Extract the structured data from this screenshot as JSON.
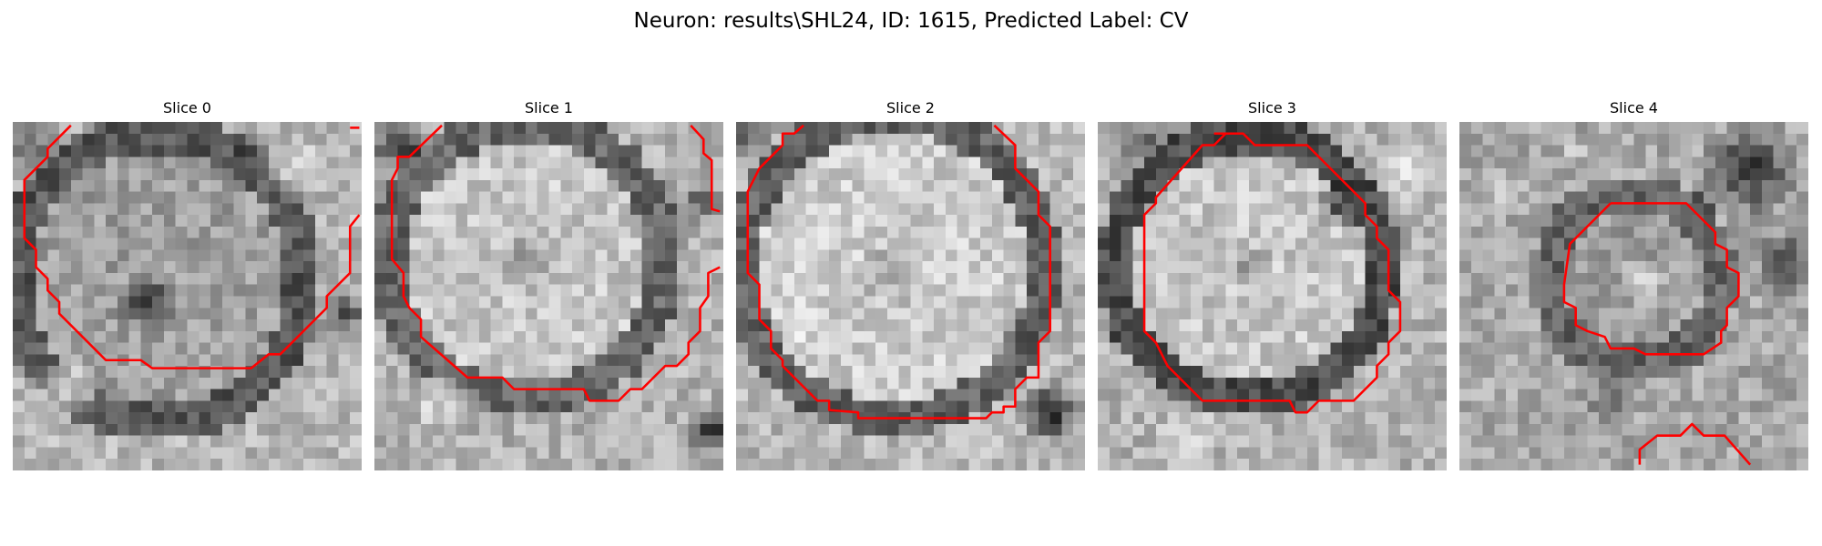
{
  "figure": {
    "title": "Neuron: results\\SHL24, ID: 1615, Predicted Label: CV"
  },
  "colors": {
    "contour": "#ff0000",
    "background": "#ffffff"
  },
  "slices": [
    {
      "title": "Slice 0",
      "grid_size": 30,
      "cell_mode": "ring",
      "ring": {
        "cx": 12.5,
        "cy": 13.5,
        "r": 12.5,
        "fill": 0.62,
        "rim": 0.34,
        "out": 0.72
      },
      "dark_spots": [
        [
          11.5,
          15.5,
          2.6,
          0.15
        ],
        [
          20.5,
          3.5,
          3.0,
          0.28
        ],
        [
          28.5,
          16.5,
          2.5,
          0.25
        ],
        [
          1.5,
          2.0,
          2.5,
          0.3
        ]
      ],
      "bright_spots": [
        [
          24.0,
          4.0,
          3.0,
          0.85
        ],
        [
          5.0,
          23.0,
          3.0,
          0.86
        ]
      ],
      "contours": [
        [
          [
            5.0,
            0.3
          ],
          [
            3.0,
            2.3
          ],
          [
            3.0,
            3.0
          ],
          [
            1.0,
            5.0
          ],
          [
            1.0,
            10.0
          ],
          [
            2.0,
            11.0
          ],
          [
            2.0,
            12.5
          ],
          [
            3.0,
            13.5
          ],
          [
            3.0,
            14.5
          ],
          [
            4.0,
            15.5
          ],
          [
            4.0,
            16.5
          ],
          [
            8.0,
            20.5
          ],
          [
            11.0,
            20.5
          ],
          [
            12.0,
            21.2
          ],
          [
            20.5,
            21.2
          ],
          [
            22.0,
            20.0
          ],
          [
            23.0,
            20.0
          ],
          [
            27.0,
            16.0
          ],
          [
            27.0,
            15.0
          ],
          [
            29.0,
            13.0
          ],
          [
            29.0,
            9.0
          ],
          [
            29.8,
            8.0
          ]
        ],
        [
          [
            29.8,
            0.5
          ],
          [
            29.0,
            0.5
          ]
        ]
      ],
      "seed": 11
    },
    {
      "title": "Slice 1",
      "grid_size": 30,
      "cell_mode": "ring",
      "ring": {
        "cx": 13.0,
        "cy": 12.0,
        "r": 12.0,
        "fill": 0.78,
        "rim": 0.4,
        "out": 0.7
      },
      "dark_spots": [
        [
          13.0,
          12.0,
          3.0,
          0.52
        ],
        [
          2.0,
          2.0,
          2.5,
          0.15
        ],
        [
          29.0,
          26.5,
          2.5,
          0.1
        ],
        [
          28.0,
          7.0,
          2.0,
          0.35
        ]
      ],
      "bright_spots": [
        [
          6.0,
          24.0,
          3.0,
          0.88
        ]
      ],
      "contours": [
        [
          [
            5.8,
            0.3
          ],
          [
            3.0,
            3.0
          ],
          [
            2.0,
            3.0
          ],
          [
            2.0,
            4.0
          ],
          [
            1.5,
            5.0
          ],
          [
            1.5,
            11.8
          ],
          [
            2.5,
            13.0
          ],
          [
            2.5,
            15.0
          ],
          [
            3.0,
            16.0
          ],
          [
            4.0,
            17.0
          ],
          [
            4.0,
            18.5
          ],
          [
            8.0,
            22.0
          ],
          [
            11.0,
            22.0
          ],
          [
            12.0,
            23.0
          ],
          [
            18.0,
            23.0
          ],
          [
            18.5,
            24.0
          ],
          [
            21.0,
            24.0
          ],
          [
            22.0,
            23.0
          ],
          [
            23.0,
            23.0
          ],
          [
            25.0,
            21.0
          ],
          [
            26.0,
            21.0
          ],
          [
            27.0,
            20.0
          ],
          [
            27.0,
            19.0
          ],
          [
            28.0,
            18.0
          ],
          [
            28.0,
            16.0
          ],
          [
            28.7,
            15.0
          ],
          [
            28.7,
            13.0
          ],
          [
            29.7,
            12.5
          ]
        ],
        [
          [
            27.2,
            0.3
          ],
          [
            28.3,
            1.5
          ],
          [
            28.3,
            2.7
          ],
          [
            29.0,
            3.3
          ],
          [
            29.0,
            7.5
          ],
          [
            29.7,
            7.7
          ]
        ]
      ],
      "seed": 23
    },
    {
      "title": "Slice 2",
      "grid_size": 30,
      "cell_mode": "ring",
      "ring": {
        "cx": 13.5,
        "cy": 12.5,
        "r": 13.0,
        "fill": 0.8,
        "rim": 0.38,
        "out": 0.72
      },
      "dark_spots": [
        [
          13.5,
          13.0,
          3.2,
          0.6
        ],
        [
          27.0,
          25.0,
          3.0,
          0.08
        ],
        [
          1.0,
          1.0,
          2.0,
          0.3
        ]
      ],
      "bright_spots": [
        [
          5.0,
          17.0,
          2.5,
          0.9
        ]
      ],
      "contours": [
        [
          [
            5.8,
            0.3
          ],
          [
            5.0,
            1.0
          ],
          [
            4.0,
            1.0
          ],
          [
            4.0,
            2.0
          ],
          [
            2.0,
            4.0
          ],
          [
            1.5,
            5.0
          ],
          [
            1.0,
            6.0
          ],
          [
            1.0,
            13.0
          ],
          [
            2.0,
            14.0
          ],
          [
            2.0,
            17.0
          ],
          [
            3.0,
            18.0
          ],
          [
            3.0,
            19.5
          ],
          [
            4.0,
            20.5
          ],
          [
            4.0,
            21.0
          ],
          [
            7.0,
            24.0
          ],
          [
            8.0,
            24.0
          ],
          [
            8.0,
            24.8
          ],
          [
            10.5,
            25.0
          ],
          [
            10.5,
            25.5
          ],
          [
            11.0,
            25.5
          ],
          [
            21.5,
            25.5
          ],
          [
            22.0,
            25.0
          ],
          [
            23.0,
            25.0
          ],
          [
            23.0,
            24.5
          ],
          [
            24.0,
            24.5
          ],
          [
            24.0,
            23.0
          ],
          [
            25.0,
            22.0
          ],
          [
            26.0,
            22.0
          ],
          [
            26.0,
            19.0
          ],
          [
            27.0,
            18.0
          ],
          [
            27.0,
            9.0
          ],
          [
            26.0,
            8.0
          ],
          [
            26.0,
            6.0
          ],
          [
            25.0,
            5.0
          ],
          [
            24.0,
            4.0
          ],
          [
            24.0,
            2.0
          ],
          [
            22.2,
            0.3
          ]
        ]
      ],
      "seed": 37
    },
    {
      "title": "Slice 3",
      "grid_size": 30,
      "cell_mode": "ring",
      "ring": {
        "cx": 13.0,
        "cy": 12.5,
        "r": 11.5,
        "fill": 0.78,
        "rim": 0.3,
        "out": 0.7
      },
      "dark_spots": [
        [
          13.0,
          12.5,
          2.5,
          0.62
        ],
        [
          21.0,
          7.0,
          2.5,
          0.18
        ],
        [
          4.0,
          2.0,
          2.5,
          0.35
        ]
      ],
      "bright_spots": [
        [
          27.0,
          4.0,
          3.0,
          0.9
        ],
        [
          8.0,
          27.0,
          3.0,
          0.88
        ]
      ],
      "contours": [
        [
          [
            10.0,
            1.0
          ],
          [
            12.5,
            1.0
          ],
          [
            13.5,
            2.0
          ],
          [
            18.0,
            2.0
          ],
          [
            23.0,
            7.0
          ],
          [
            23.0,
            8.0
          ],
          [
            24.0,
            9.0
          ],
          [
            24.0,
            10.0
          ],
          [
            25.0,
            11.0
          ],
          [
            25.0,
            14.5
          ],
          [
            26.0,
            15.5
          ],
          [
            26.0,
            18.0
          ],
          [
            25.0,
            19.0
          ],
          [
            25.0,
            20.0
          ],
          [
            24.0,
            21.0
          ],
          [
            24.0,
            22.0
          ],
          [
            22.0,
            24.0
          ],
          [
            19.0,
            24.0
          ],
          [
            18.0,
            25.0
          ],
          [
            17.0,
            25.0
          ],
          [
            16.5,
            24.0
          ],
          [
            9.0,
            24.0
          ],
          [
            7.0,
            22.0
          ],
          [
            6.0,
            21.0
          ],
          [
            5.0,
            19.0
          ],
          [
            4.0,
            18.0
          ],
          [
            4.0,
            8.0
          ],
          [
            5.0,
            7.0
          ],
          [
            5.0,
            6.5
          ],
          [
            9.0,
            2.0
          ],
          [
            10.0,
            2.0
          ],
          [
            11.0,
            1.0
          ]
        ]
      ],
      "seed": 53
    },
    {
      "title": "Slice 4",
      "grid_size": 30,
      "cell_mode": "ring",
      "ring": {
        "cx": 15.0,
        "cy": 13.5,
        "r": 7.5,
        "fill": 0.62,
        "rim": 0.4,
        "out": 0.66
      },
      "dark_spots": [
        [
          25.0,
          4.0,
          4.5,
          0.15
        ],
        [
          28.0,
          12.0,
          3.0,
          0.2
        ],
        [
          13.0,
          24.0,
          3.0,
          0.45
        ]
      ],
      "bright_spots": [
        [
          10.0,
          2.5,
          0.8,
          1.0
        ],
        [
          16.0,
          14.0,
          2.5,
          0.85
        ],
        [
          4.0,
          6.0,
          2.5,
          0.86
        ]
      ],
      "contours": [
        [
          [
            13.0,
            7.0
          ],
          [
            19.5,
            7.0
          ],
          [
            22.0,
            9.5
          ],
          [
            22.0,
            10.5
          ],
          [
            23.0,
            11.0
          ],
          [
            23.0,
            12.5
          ],
          [
            24.0,
            13.0
          ],
          [
            24.0,
            15.0
          ],
          [
            23.0,
            16.0
          ],
          [
            23.0,
            17.5
          ],
          [
            22.5,
            18.0
          ],
          [
            22.5,
            19.0
          ],
          [
            21.0,
            20.0
          ],
          [
            16.0,
            20.0
          ],
          [
            15.0,
            19.5
          ],
          [
            13.0,
            19.5
          ],
          [
            12.5,
            18.5
          ],
          [
            11.0,
            18.0
          ],
          [
            10.0,
            17.5
          ],
          [
            10.0,
            16.0
          ],
          [
            9.0,
            15.5
          ],
          [
            9.0,
            14.0
          ],
          [
            9.5,
            10.5
          ],
          [
            12.0,
            8.0
          ],
          [
            13.0,
            7.0
          ]
        ],
        [
          [
            15.5,
            29.5
          ],
          [
            15.5,
            28.2
          ],
          [
            17.0,
            27.0
          ],
          [
            19.0,
            27.0
          ],
          [
            20.0,
            26.0
          ],
          [
            21.0,
            27.0
          ],
          [
            22.8,
            27.0
          ],
          [
            25.0,
            29.5
          ]
        ]
      ],
      "seed": 71
    }
  ]
}
